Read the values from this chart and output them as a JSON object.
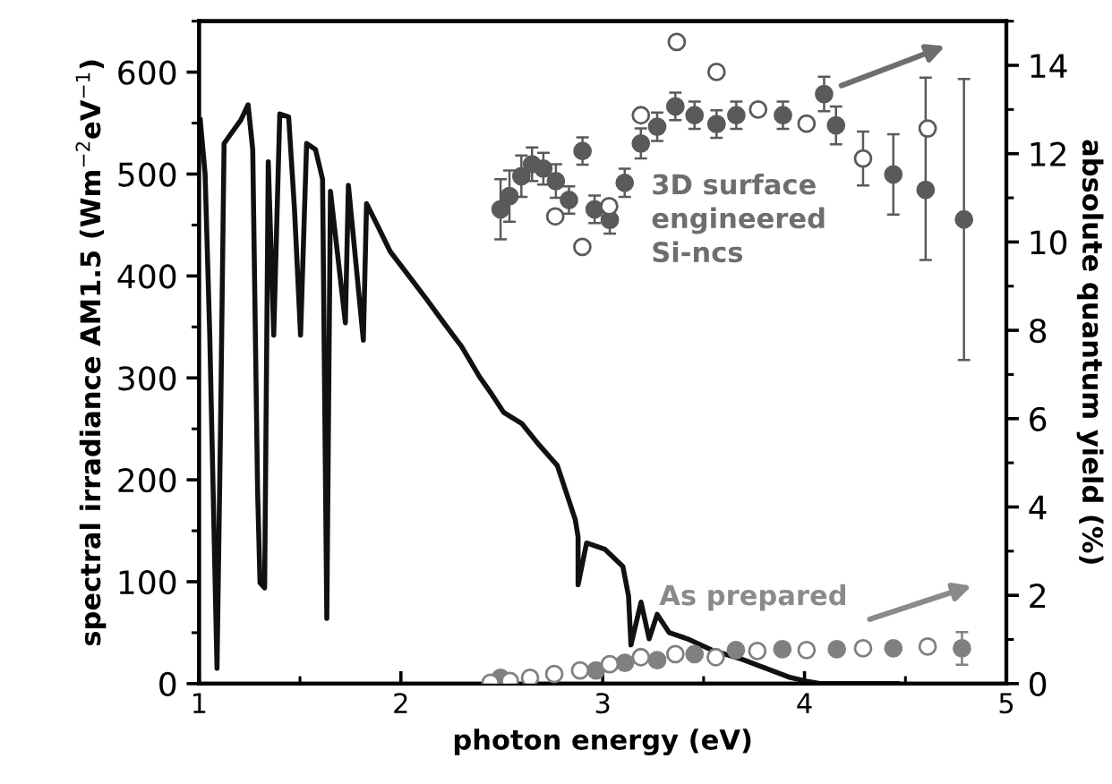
{
  "chart_data": {
    "type": "line",
    "xlabel": "photon energy (eV)",
    "ylabel": "spectral irradiance AM1.5 (Wm$^{−2}$eV$^{−1}$)",
    "y2label": "absolute quantum yield (%)",
    "annotations": [
      "3D surface engineered Si-ncs",
      "As prepared"
    ],
    "xlim": [
      1,
      5
    ],
    "xticks": [
      1,
      2,
      3,
      4,
      5
    ],
    "ylim": [
      0,
      650
    ],
    "yticks": [
      0,
      100,
      200,
      300,
      400,
      500,
      600
    ],
    "y2lim": [
      0,
      15
    ],
    "y2ticks": [
      0,
      2,
      4,
      6,
      8,
      10,
      12,
      14
    ],
    "grid": false,
    "legend": false,
    "series": [
      {
        "color": "#111111",
        "line_style": "solid",
        "marker": "none",
        "x": [
          1.006,
          1.03,
          1.053,
          1.089,
          1.107,
          1.124,
          1.207,
          1.243,
          1.266,
          1.29,
          1.302,
          1.325,
          1.343,
          1.37,
          1.4,
          1.444,
          1.473,
          1.503,
          1.533,
          1.577,
          1.612,
          1.633,
          1.651,
          1.725,
          1.74,
          1.814,
          1.83,
          1.888,
          1.947,
          2.036,
          2.124,
          2.213,
          2.3,
          2.39,
          2.45,
          2.51,
          2.6,
          2.686,
          2.775,
          2.834,
          2.864,
          2.878,
          2.878,
          2.92,
          3.01,
          3.1,
          3.128,
          3.14,
          3.19,
          3.23,
          3.27,
          3.33,
          3.42,
          3.54,
          3.69,
          3.81,
          3.93,
          4.02,
          4.08,
          4.46
        ],
        "values": [
          553,
          500,
          342,
          15,
          260,
          530,
          553,
          568,
          524,
          190,
          99,
          94,
          512,
          342,
          559,
          556,
          465,
          342,
          530,
          524,
          495,
          64,
          483,
          354,
          489,
          337,
          471,
          448,
          424,
          401,
          378,
          354,
          331,
          301,
          284,
          266,
          255,
          234,
          214,
          179,
          161,
          144,
          97,
          138,
          132,
          115,
          86,
          38,
          80,
          44,
          68,
          50,
          44,
          33,
          24,
          15,
          6,
          2,
          0,
          0
        ]
      },
      {
        "type": "scatter",
        "axis": "y2",
        "color": "#5a5a5a",
        "marker": "circle",
        "x": [
          2.494,
          2.538,
          2.597,
          2.65,
          2.706,
          2.768,
          2.833,
          2.9,
          2.96,
          3.035,
          3.109,
          3.189,
          3.27,
          3.36,
          3.455,
          3.564,
          3.662,
          3.893,
          4.097,
          4.156,
          4.44,
          4.6,
          4.79
        ],
        "values": [
          10.74,
          11.04,
          11.49,
          11.76,
          11.66,
          11.38,
          10.95,
          12.06,
          10.74,
          10.5,
          11.34,
          12.23,
          12.61,
          13.07,
          12.87,
          12.67,
          12.87,
          12.87,
          13.35,
          12.64,
          11.53,
          11.18,
          10.51
        ],
        "errors": [
          0.68,
          0.58,
          0.47,
          0.38,
          0.36,
          0.38,
          0.31,
          0.31,
          0.31,
          0.31,
          0.32,
          0.34,
          0.32,
          0.31,
          0.31,
          0.31,
          0.31,
          0.31,
          0.39,
          0.43,
          0.91,
          [
            9.59,
            13.72
          ],
          3.18
        ]
      },
      {
        "type": "scatter",
        "axis": "y2",
        "color": "#5a5a5a",
        "colors": [
          "#ffffff",
          "#ffffff",
          "#ffffff",
          "#ffffff",
          "#ffffff",
          "#ffffff",
          "#ffffff",
          "#ffffff",
          "#ffffff",
          "#ffffff"
        ],
        "marker": "circle",
        "x": [
          2.765,
          2.899,
          3.032,
          3.189,
          3.367,
          3.564,
          3.77,
          4.01,
          4.29,
          4.61
        ],
        "values": [
          10.58,
          9.89,
          10.81,
          12.87,
          14.53,
          13.85,
          13.0,
          12.68,
          11.89,
          12.57
        ],
        "errors": [
          null,
          null,
          null,
          null,
          null,
          null,
          null,
          null,
          0.61,
          null
        ]
      },
      {
        "type": "scatter",
        "axis": "y2",
        "color": "#808080",
        "marker": "circle",
        "x": [
          2.494,
          2.967,
          3.11,
          3.27,
          3.455,
          3.66,
          3.89,
          4.16,
          4.44,
          4.78
        ],
        "values": [
          0.13,
          0.3,
          0.47,
          0.53,
          0.67,
          0.76,
          0.78,
          0.78,
          0.8,
          0.8
        ],
        "errors": [
          null,
          null,
          null,
          null,
          null,
          null,
          null,
          null,
          null,
          0.37
        ]
      },
      {
        "type": "scatter",
        "axis": "y2",
        "color": "#808080",
        "colors": [
          "#ffffff",
          "#ffffff",
          "#ffffff",
          "#ffffff",
          "#ffffff",
          "#ffffff",
          "#ffffff",
          "#ffffff",
          "#ffffff",
          "#ffffff",
          "#ffffff",
          "#ffffff",
          "#ffffff"
        ],
        "marker": "circle",
        "x": [
          2.444,
          2.54,
          2.64,
          2.76,
          2.888,
          3.035,
          3.189,
          3.36,
          3.56,
          3.766,
          4.01,
          4.29,
          4.61
        ],
        "values": [
          0.02,
          0.06,
          0.13,
          0.22,
          0.3,
          0.44,
          0.6,
          0.67,
          0.6,
          0.74,
          0.76,
          0.8,
          0.84
        ]
      }
    ]
  }
}
